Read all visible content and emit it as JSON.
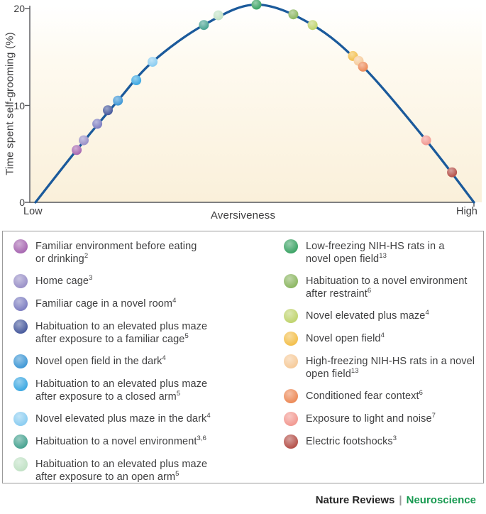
{
  "chart_data": {
    "type": "scatter",
    "title": "",
    "xlabel": "Aversiveness",
    "ylabel": "Time spent self-grooming (%)",
    "x_axis": {
      "left_label": "Low",
      "right_label": "High",
      "range": [
        0,
        100
      ],
      "unit": "relative aversiveness"
    },
    "y_axis": {
      "ticks": [
        0,
        10,
        20
      ],
      "range": [
        0,
        20
      ],
      "unit": "%"
    },
    "grid": false,
    "curve_color": "#1b5a9b",
    "plot_bg_top": "#ffffff",
    "plot_bg_bottom": "#faf0da",
    "curve": [
      [
        0,
        0
      ],
      [
        9.4,
        5.4
      ],
      [
        18.8,
        10.5
      ],
      [
        26.7,
        14.5
      ],
      [
        38.4,
        18.3
      ],
      [
        50.4,
        20.4
      ],
      [
        63.2,
        18.3
      ],
      [
        74.7,
        14.0
      ],
      [
        89.1,
        6.4
      ],
      [
        100,
        0
      ]
    ],
    "points": [
      {
        "lines": [
          "Familiar environment before eating",
          "or drinking"
        ],
        "ref": "2",
        "color": "#a869b2",
        "aversiveness": 9.4,
        "grooming_pct": 5.4
      },
      {
        "lines": [
          "Home cage"
        ],
        "ref": "3",
        "color": "#9b92c8",
        "aversiveness": 11.0,
        "grooming_pct": 6.4
      },
      {
        "lines": [
          "Familiar cage in a novel room"
        ],
        "ref": "4",
        "color": "#7f80c2",
        "aversiveness": 14.1,
        "grooming_pct": 8.1
      },
      {
        "lines": [
          "Habituation to an elevated plus maze",
          "after exposure to a familiar cage"
        ],
        "ref": "5",
        "color": "#4a5c9e",
        "aversiveness": 16.5,
        "grooming_pct": 9.5
      },
      {
        "lines": [
          "Novel open field in the dark"
        ],
        "ref": "4",
        "color": "#4299d6",
        "aversiveness": 18.8,
        "grooming_pct": 10.5
      },
      {
        "lines": [
          "Habituation to an elevated plus maze",
          "after exposure to a closed arm"
        ],
        "ref": "5",
        "color": "#3fa9e2",
        "aversiveness": 23.0,
        "grooming_pct": 12.6
      },
      {
        "lines": [
          "Novel elevated plus maze in the dark"
        ],
        "ref": "4",
        "color": "#8ccdf1",
        "aversiveness": 26.7,
        "grooming_pct": 14.5
      },
      {
        "lines": [
          "Habituation to a novel environment"
        ],
        "ref": "3,6",
        "color": "#4aa492",
        "aversiveness": 38.4,
        "grooming_pct": 18.3
      },
      {
        "lines": [
          "Habituation to an elevated plus maze",
          "after exposure to an open arm"
        ],
        "ref": "5",
        "color": "#c2e2c6",
        "aversiveness": 41.7,
        "grooming_pct": 19.3
      },
      {
        "lines": [
          "Low-freezing NIH-HS rats in a",
          "novel open field"
        ],
        "ref": "13",
        "color": "#3ea467",
        "aversiveness": 50.4,
        "grooming_pct": 20.4
      },
      {
        "lines": [
          "Habituation to a novel environment",
          "after restraint"
        ],
        "ref": "6",
        "color": "#8db763",
        "aversiveness": 58.8,
        "grooming_pct": 19.4
      },
      {
        "lines": [
          "Novel elevated plus maze"
        ],
        "ref": "4",
        "color": "#c0d46f",
        "aversiveness": 63.2,
        "grooming_pct": 18.3
      },
      {
        "lines": [
          "Novel open field"
        ],
        "ref": "4",
        "color": "#f3c04e",
        "aversiveness": 72.4,
        "grooming_pct": 15.1
      },
      {
        "lines": [
          "High-freezing NIH-HS rats in a novel",
          "open field"
        ],
        "ref": "13",
        "color": "#f6cb9b",
        "aversiveness": 73.7,
        "grooming_pct": 14.6
      },
      {
        "lines": [
          "Conditioned fear context"
        ],
        "ref": "6",
        "color": "#ec8b59",
        "aversiveness": 74.7,
        "grooming_pct": 14.0
      },
      {
        "lines": [
          "Exposure to light and noise"
        ],
        "ref": "7",
        "color": "#f29a92",
        "aversiveness": 89.1,
        "grooming_pct": 6.4
      },
      {
        "lines": [
          "Electric footshocks"
        ],
        "ref": "3",
        "color": "#b5524b",
        "aversiveness": 95.0,
        "grooming_pct": 3.1
      }
    ]
  },
  "legend": {
    "columns": [
      {
        "side": "left",
        "point_indices": [
          0,
          1,
          2,
          3,
          4,
          5,
          6,
          7,
          8
        ]
      },
      {
        "side": "right",
        "point_indices": [
          9,
          10,
          11,
          12,
          13,
          14,
          15,
          16
        ]
      }
    ]
  },
  "footer": {
    "brand": "Nature Reviews",
    "separator": "|",
    "journal": "Neuroscience",
    "brand_color": "#262626",
    "journal_color": "#189a51"
  }
}
